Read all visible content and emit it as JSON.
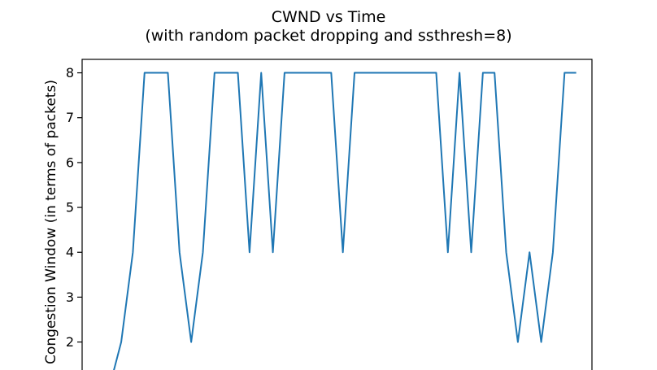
{
  "chart_data": {
    "type": "line",
    "title": "CWND vs Time",
    "subtitle": "(with random packet dropping and ssthresh=8)",
    "ylabel": "Congestion Window (in terms of packets)",
    "xlabel": "",
    "y_ticks": [
      "8",
      "7",
      "6",
      "5",
      "4",
      "3",
      "2"
    ],
    "ylim": [
      1.05,
      8.3
    ],
    "xlim": [
      -2.35,
      41.35
    ],
    "grid": false,
    "legend": "none",
    "series": [
      {
        "color": "#1f77b4",
        "x": [
          0,
          1,
          2,
          3,
          4,
          5,
          6,
          7,
          8,
          9,
          10,
          11,
          12,
          13,
          14,
          15,
          16,
          17,
          18,
          19,
          20,
          21,
          22,
          23,
          24,
          25,
          26,
          27,
          28,
          29,
          30,
          31,
          32,
          33,
          34,
          35,
          36,
          37,
          38,
          39
        ],
        "y": [
          1,
          2,
          4,
          8,
          8,
          8,
          4,
          2,
          4,
          8,
          8,
          8,
          4,
          8,
          4,
          8,
          8,
          8,
          8,
          8,
          4,
          8,
          8,
          8,
          8,
          8,
          8,
          8,
          8,
          4,
          8,
          4,
          8,
          8,
          4,
          2,
          4,
          2,
          4,
          8
        ]
      }
    ],
    "tail": {
      "x": 40,
      "y": 8
    }
  }
}
